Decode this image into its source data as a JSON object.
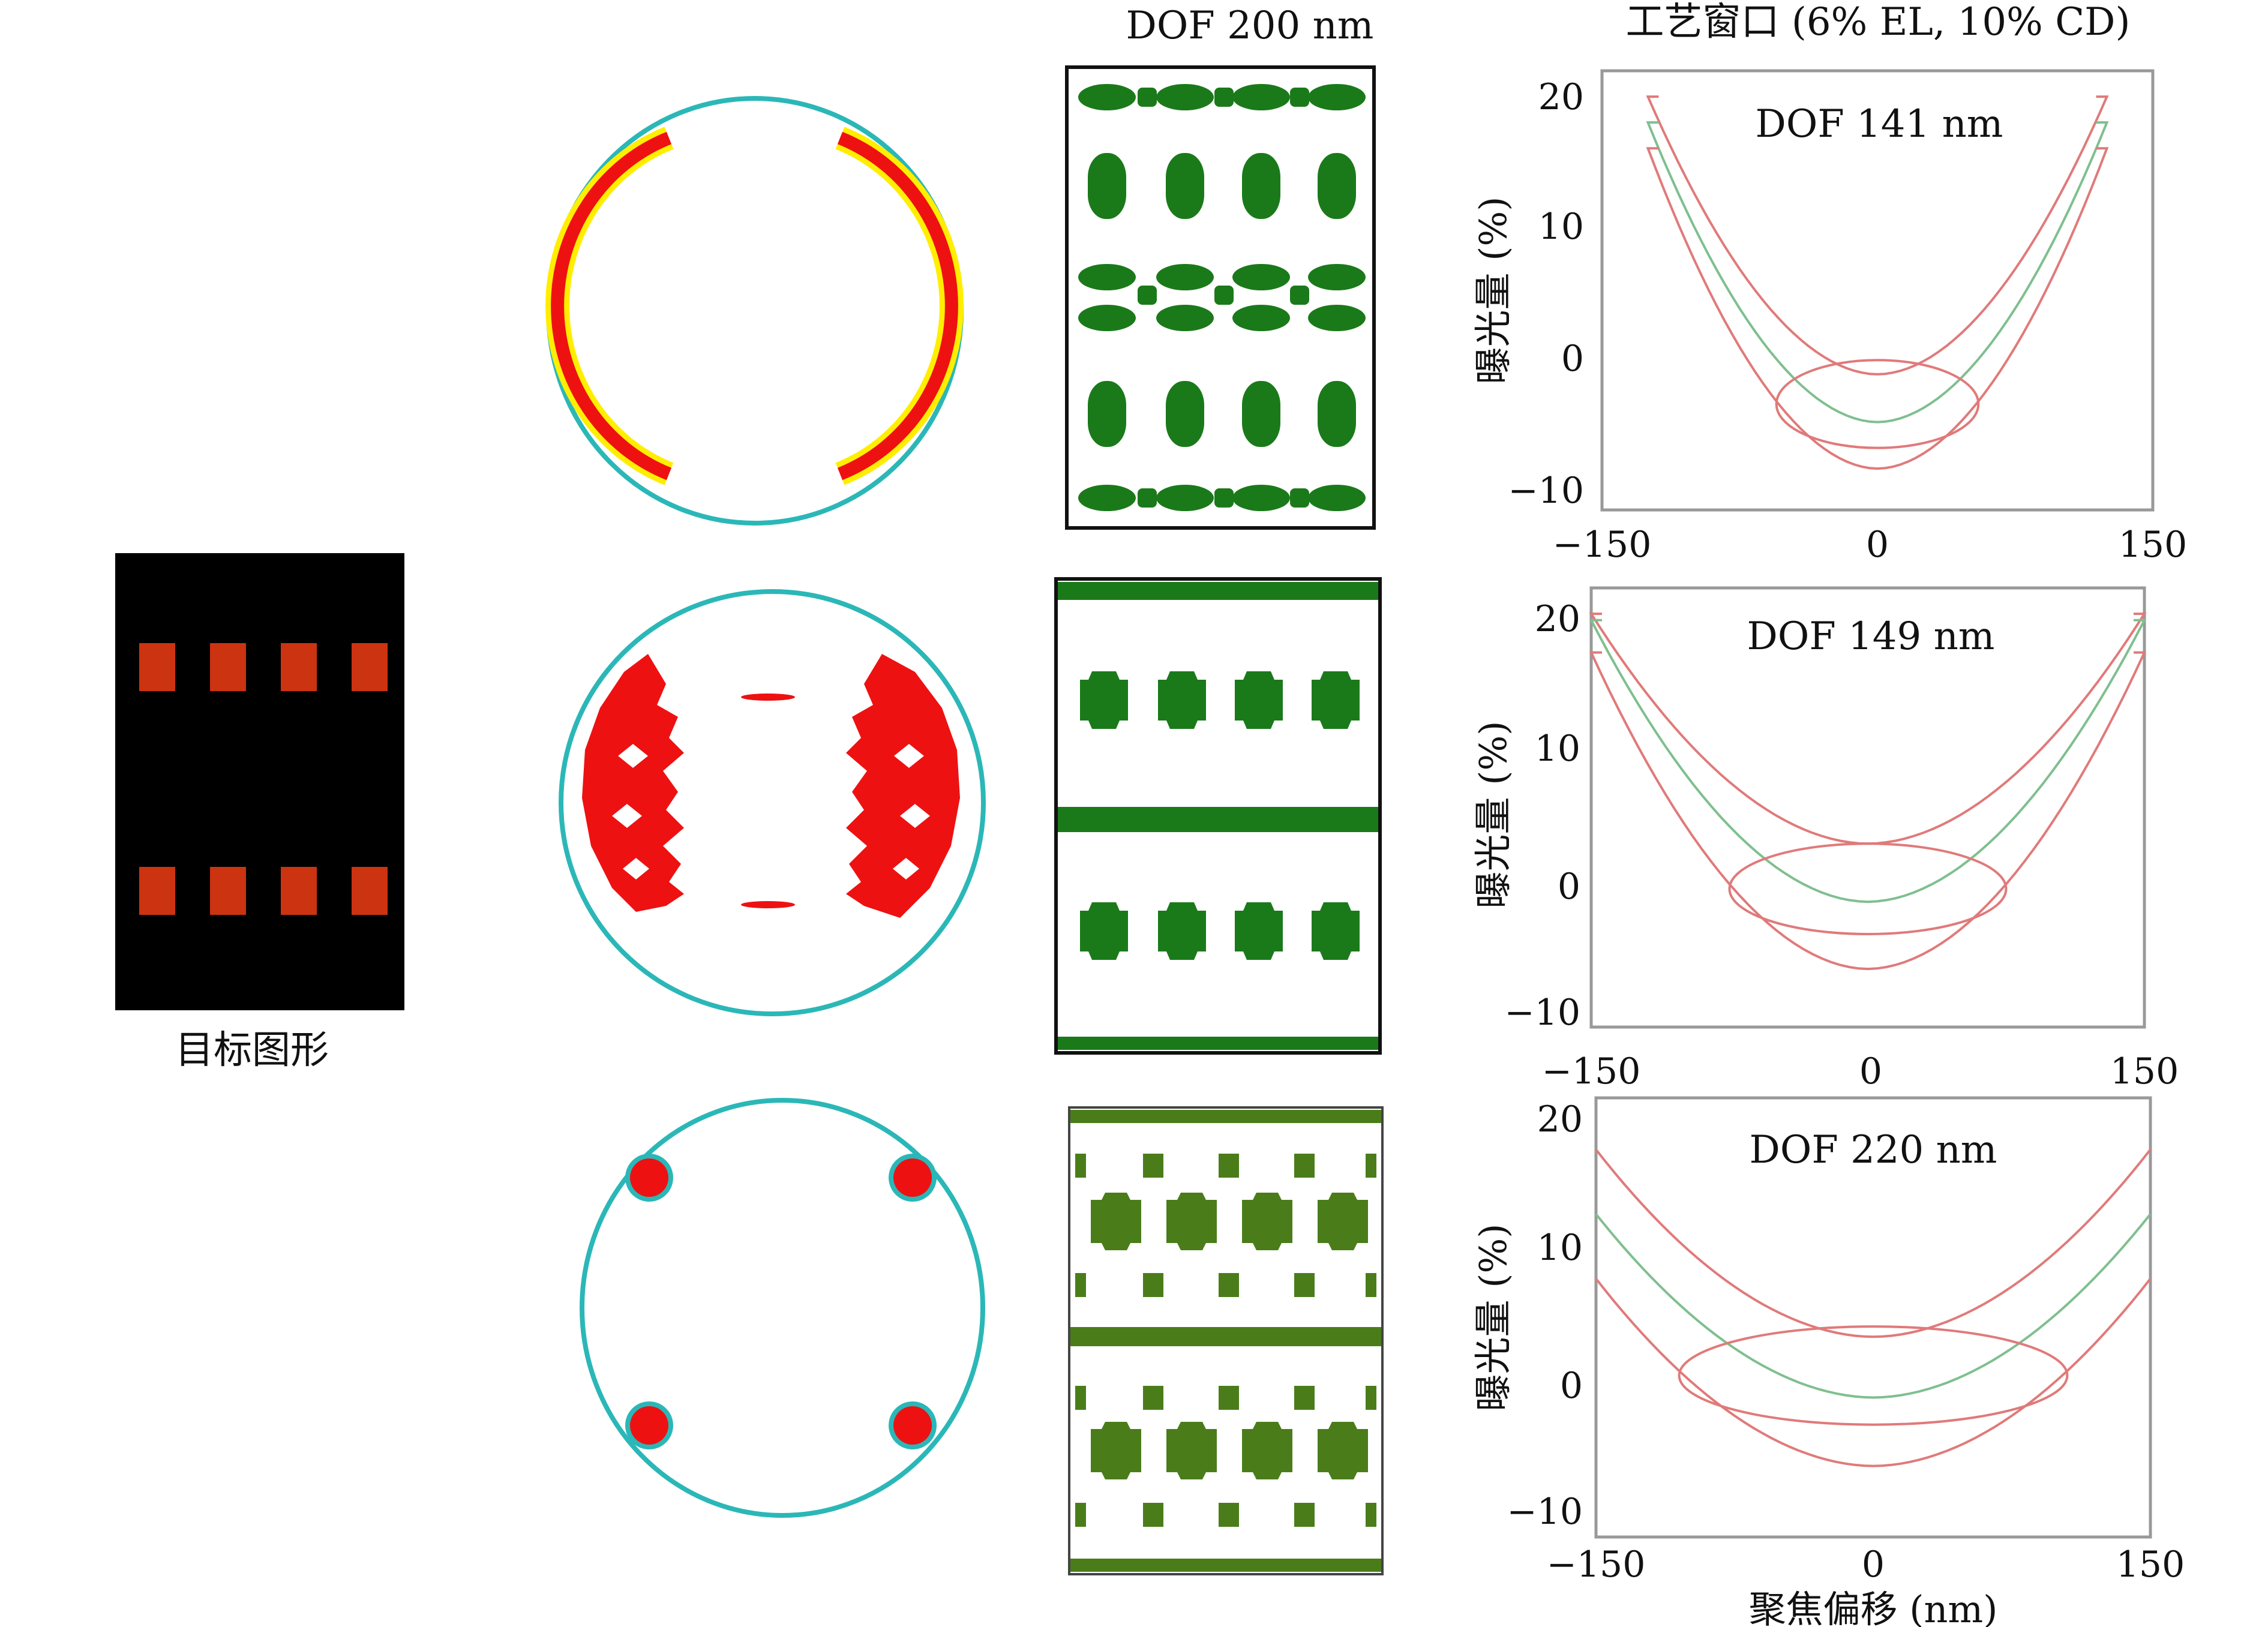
{
  "target_pattern": {
    "caption": "目标图形"
  },
  "mask_header": "DOF 200 nm",
  "window_header": "工艺窗口 (6% EL, 10% CD)",
  "colors": {
    "mask_green": "#1a7a1a",
    "mask_green_alt": "#4a7d1a",
    "source_red": "#ee1111",
    "source_yellow": "#ffee00",
    "pupil_teal": "#2bb7b7",
    "target_black": "#000000",
    "target_red": "#cc3311",
    "curve_red": "#e07a7a",
    "curve_green": "#7fbf8f"
  },
  "chart_data": [
    {
      "type": "line",
      "dof_label": "DOF 141 nm",
      "ylabel": "曝光量 (%)",
      "xlabel": "",
      "x_ticks": [
        "−150",
        "0",
        "150"
      ],
      "y_ticks": [
        "20",
        "10",
        "0",
        "−10"
      ],
      "xlim": [
        -150,
        150
      ],
      "ylim": [
        -12,
        22
      ],
      "curve_points": {
        "x_edge": -125,
        "y_edge_upper": 20,
        "y_edge_mid": 18,
        "y_edge_lower": 16,
        "upper_min": -1.5,
        "mid_min": -5.2,
        "lower_min": -8.8
      },
      "ellipse": {
        "center": [
          0,
          -3.8
        ],
        "half_width": 55,
        "half_height": 3.4
      }
    },
    {
      "type": "line",
      "dof_label": "DOF 149 nm",
      "ylabel": "曝光量 (%)",
      "xlabel": "",
      "x_ticks": [
        "−150",
        "0",
        "150"
      ],
      "y_ticks": [
        "20",
        "10",
        "0",
        "−10"
      ],
      "xlim": [
        -150,
        150
      ],
      "ylim": [
        -12,
        22
      ],
      "curve_points": {
        "x_edge": -150,
        "y_edge_upper": 20,
        "y_edge_mid": 19.5,
        "y_edge_lower": 17,
        "upper_min": 2.2,
        "mid_min": -2.3,
        "lower_min": -7.5
      },
      "ellipse": {
        "center": [
          0,
          -1.3
        ],
        "half_width": 75,
        "half_height": 3.5
      }
    },
    {
      "type": "line",
      "dof_label": "DOF 220 nm",
      "ylabel": "曝光量 (%)",
      "xlabel": "聚焦偏移 (nm)",
      "x_ticks": [
        "−150",
        "0",
        "150"
      ],
      "y_ticks": [
        "20",
        "10",
        "0",
        "−10"
      ],
      "xlim": [
        -150,
        150
      ],
      "ylim": [
        -12,
        22
      ],
      "curve_points": {
        "x_edge": -150,
        "y_edge_upper": 18,
        "y_edge_mid": 13,
        "y_edge_lower": 8,
        "upper_min": 3.5,
        "mid_min": -1.2,
        "lower_min": -6.5
      },
      "ellipse": {
        "center": [
          0,
          0.5
        ],
        "half_width": 105,
        "half_height": 3.8
      }
    }
  ]
}
